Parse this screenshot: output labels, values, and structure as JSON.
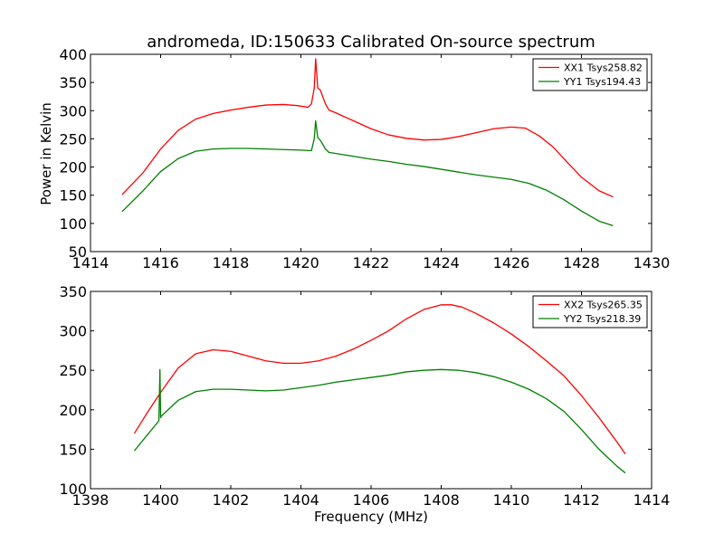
{
  "figure": {
    "title": "andromeda, ID:150633 Calibrated On-source spectrum"
  },
  "chart_data": [
    {
      "type": "line",
      "title": "andromeda, ID:150633 Calibrated On-source spectrum",
      "xlabel": "",
      "ylabel": "Power in Kelvin",
      "xlim": [
        1414,
        1430
      ],
      "ylim": [
        50,
        400
      ],
      "xticks": [
        1414,
        1416,
        1418,
        1420,
        1422,
        1424,
        1426,
        1428,
        1430
      ],
      "yticks": [
        50,
        100,
        150,
        200,
        250,
        300,
        350,
        400
      ],
      "legend_position": "top-right",
      "series": [
        {
          "name": "XX1 Tsys258.82",
          "color": "#ff0000",
          "x": [
            1414.9,
            1415.5,
            1416.0,
            1416.5,
            1417.0,
            1417.5,
            1418.0,
            1418.5,
            1419.0,
            1419.5,
            1419.9,
            1420.2,
            1420.3,
            1420.38,
            1420.42,
            1420.48,
            1420.55,
            1420.7,
            1420.8,
            1421.0,
            1421.5,
            1422.0,
            1422.5,
            1423.0,
            1423.5,
            1424.0,
            1424.5,
            1425.0,
            1425.5,
            1426.0,
            1426.4,
            1426.8,
            1427.2,
            1427.6,
            1428.0,
            1428.5,
            1428.9
          ],
          "y": [
            151,
            190,
            232,
            265,
            285,
            295,
            301,
            306,
            310,
            311,
            309,
            306,
            312,
            340,
            392,
            340,
            337,
            312,
            301,
            296,
            282,
            268,
            257,
            251,
            248,
            249,
            254,
            261,
            268,
            271,
            269,
            255,
            235,
            208,
            182,
            158,
            147
          ]
        },
        {
          "name": "YY1 Tsys194.43",
          "color": "#008000",
          "x": [
            1414.9,
            1415.5,
            1416.0,
            1416.5,
            1417.0,
            1417.5,
            1418.0,
            1418.5,
            1419.0,
            1419.5,
            1420.0,
            1420.3,
            1420.38,
            1420.42,
            1420.48,
            1420.55,
            1420.7,
            1420.8,
            1421.0,
            1421.5,
            1422.0,
            1422.5,
            1423.0,
            1423.5,
            1424.0,
            1424.5,
            1425.0,
            1425.5,
            1426.0,
            1426.5,
            1427.0,
            1427.5,
            1428.0,
            1428.5,
            1428.9
          ],
          "y": [
            121,
            158,
            192,
            215,
            228,
            232,
            233,
            233,
            232,
            231,
            230,
            229,
            250,
            282,
            252,
            248,
            232,
            226,
            224,
            219,
            214,
            210,
            205,
            201,
            196,
            191,
            186,
            182,
            178,
            171,
            159,
            142,
            122,
            104,
            96
          ]
        }
      ]
    },
    {
      "type": "line",
      "title": "",
      "xlabel": "Frequency (MHz)",
      "ylabel": "",
      "xlim": [
        1398,
        1414
      ],
      "ylim": [
        100,
        350
      ],
      "xticks": [
        1398,
        1400,
        1402,
        1404,
        1406,
        1408,
        1410,
        1412,
        1414
      ],
      "yticks": [
        100,
        150,
        200,
        250,
        300,
        350
      ],
      "legend_position": "top-right",
      "series": [
        {
          "name": "XX2 Tsys265.35",
          "color": "#ff0000",
          "x": [
            1399.25,
            1399.6,
            1400.0,
            1400.5,
            1401.0,
            1401.5,
            1402.0,
            1402.5,
            1403.0,
            1403.5,
            1404.0,
            1404.5,
            1405.0,
            1405.5,
            1406.0,
            1406.5,
            1407.0,
            1407.5,
            1408.0,
            1408.3,
            1408.6,
            1409.0,
            1409.5,
            1410.0,
            1410.5,
            1411.0,
            1411.5,
            1412.0,
            1412.5,
            1413.0,
            1413.25
          ],
          "y": [
            170,
            195,
            222,
            253,
            271,
            276,
            274,
            268,
            262,
            259,
            259,
            262,
            268,
            277,
            288,
            300,
            315,
            327,
            333,
            333,
            330,
            322,
            310,
            296,
            280,
            262,
            243,
            218,
            190,
            160,
            144
          ]
        },
        {
          "name": "YY2 Tsys218.39",
          "color": "#008000",
          "x": [
            1399.25,
            1399.6,
            1399.95,
            1399.98,
            1400.0,
            1400.02,
            1400.5,
            1401.0,
            1401.5,
            1402.0,
            1402.5,
            1403.0,
            1403.5,
            1404.0,
            1404.5,
            1405.0,
            1405.5,
            1406.0,
            1406.5,
            1407.0,
            1407.5,
            1408.0,
            1408.5,
            1409.0,
            1409.5,
            1410.0,
            1410.5,
            1411.0,
            1411.5,
            1412.0,
            1412.5,
            1413.0,
            1413.25
          ],
          "y": [
            148,
            167,
            186,
            251,
            190,
            192,
            212,
            223,
            226,
            226,
            225,
            224,
            225,
            228,
            231,
            235,
            238,
            241,
            244,
            248,
            250,
            251,
            250,
            247,
            242,
            235,
            226,
            214,
            198,
            175,
            150,
            129,
            120
          ]
        }
      ]
    }
  ]
}
